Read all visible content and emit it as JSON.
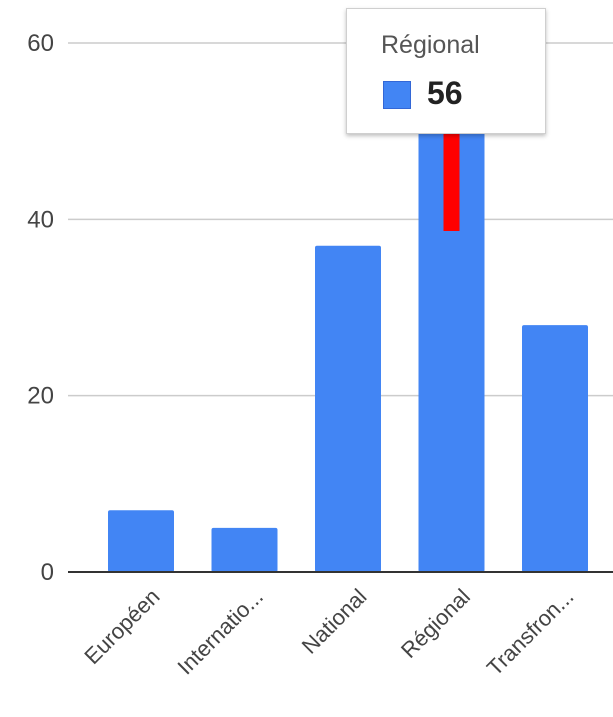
{
  "chart_data": {
    "type": "bar",
    "categories": [
      "Européen",
      "Internatio...",
      "National",
      "Régional",
      "Transfron..."
    ],
    "values": [
      7,
      5,
      37,
      56,
      28
    ],
    "ylim": [
      0,
      60
    ],
    "yticks": [
      "0",
      "20",
      "40",
      "60"
    ],
    "grid": true,
    "bar_color": "#4285f4",
    "error_bar": {
      "category": "Régional",
      "color": "#ff0000"
    },
    "tooltip": {
      "title": "Régional",
      "value": "56"
    }
  }
}
